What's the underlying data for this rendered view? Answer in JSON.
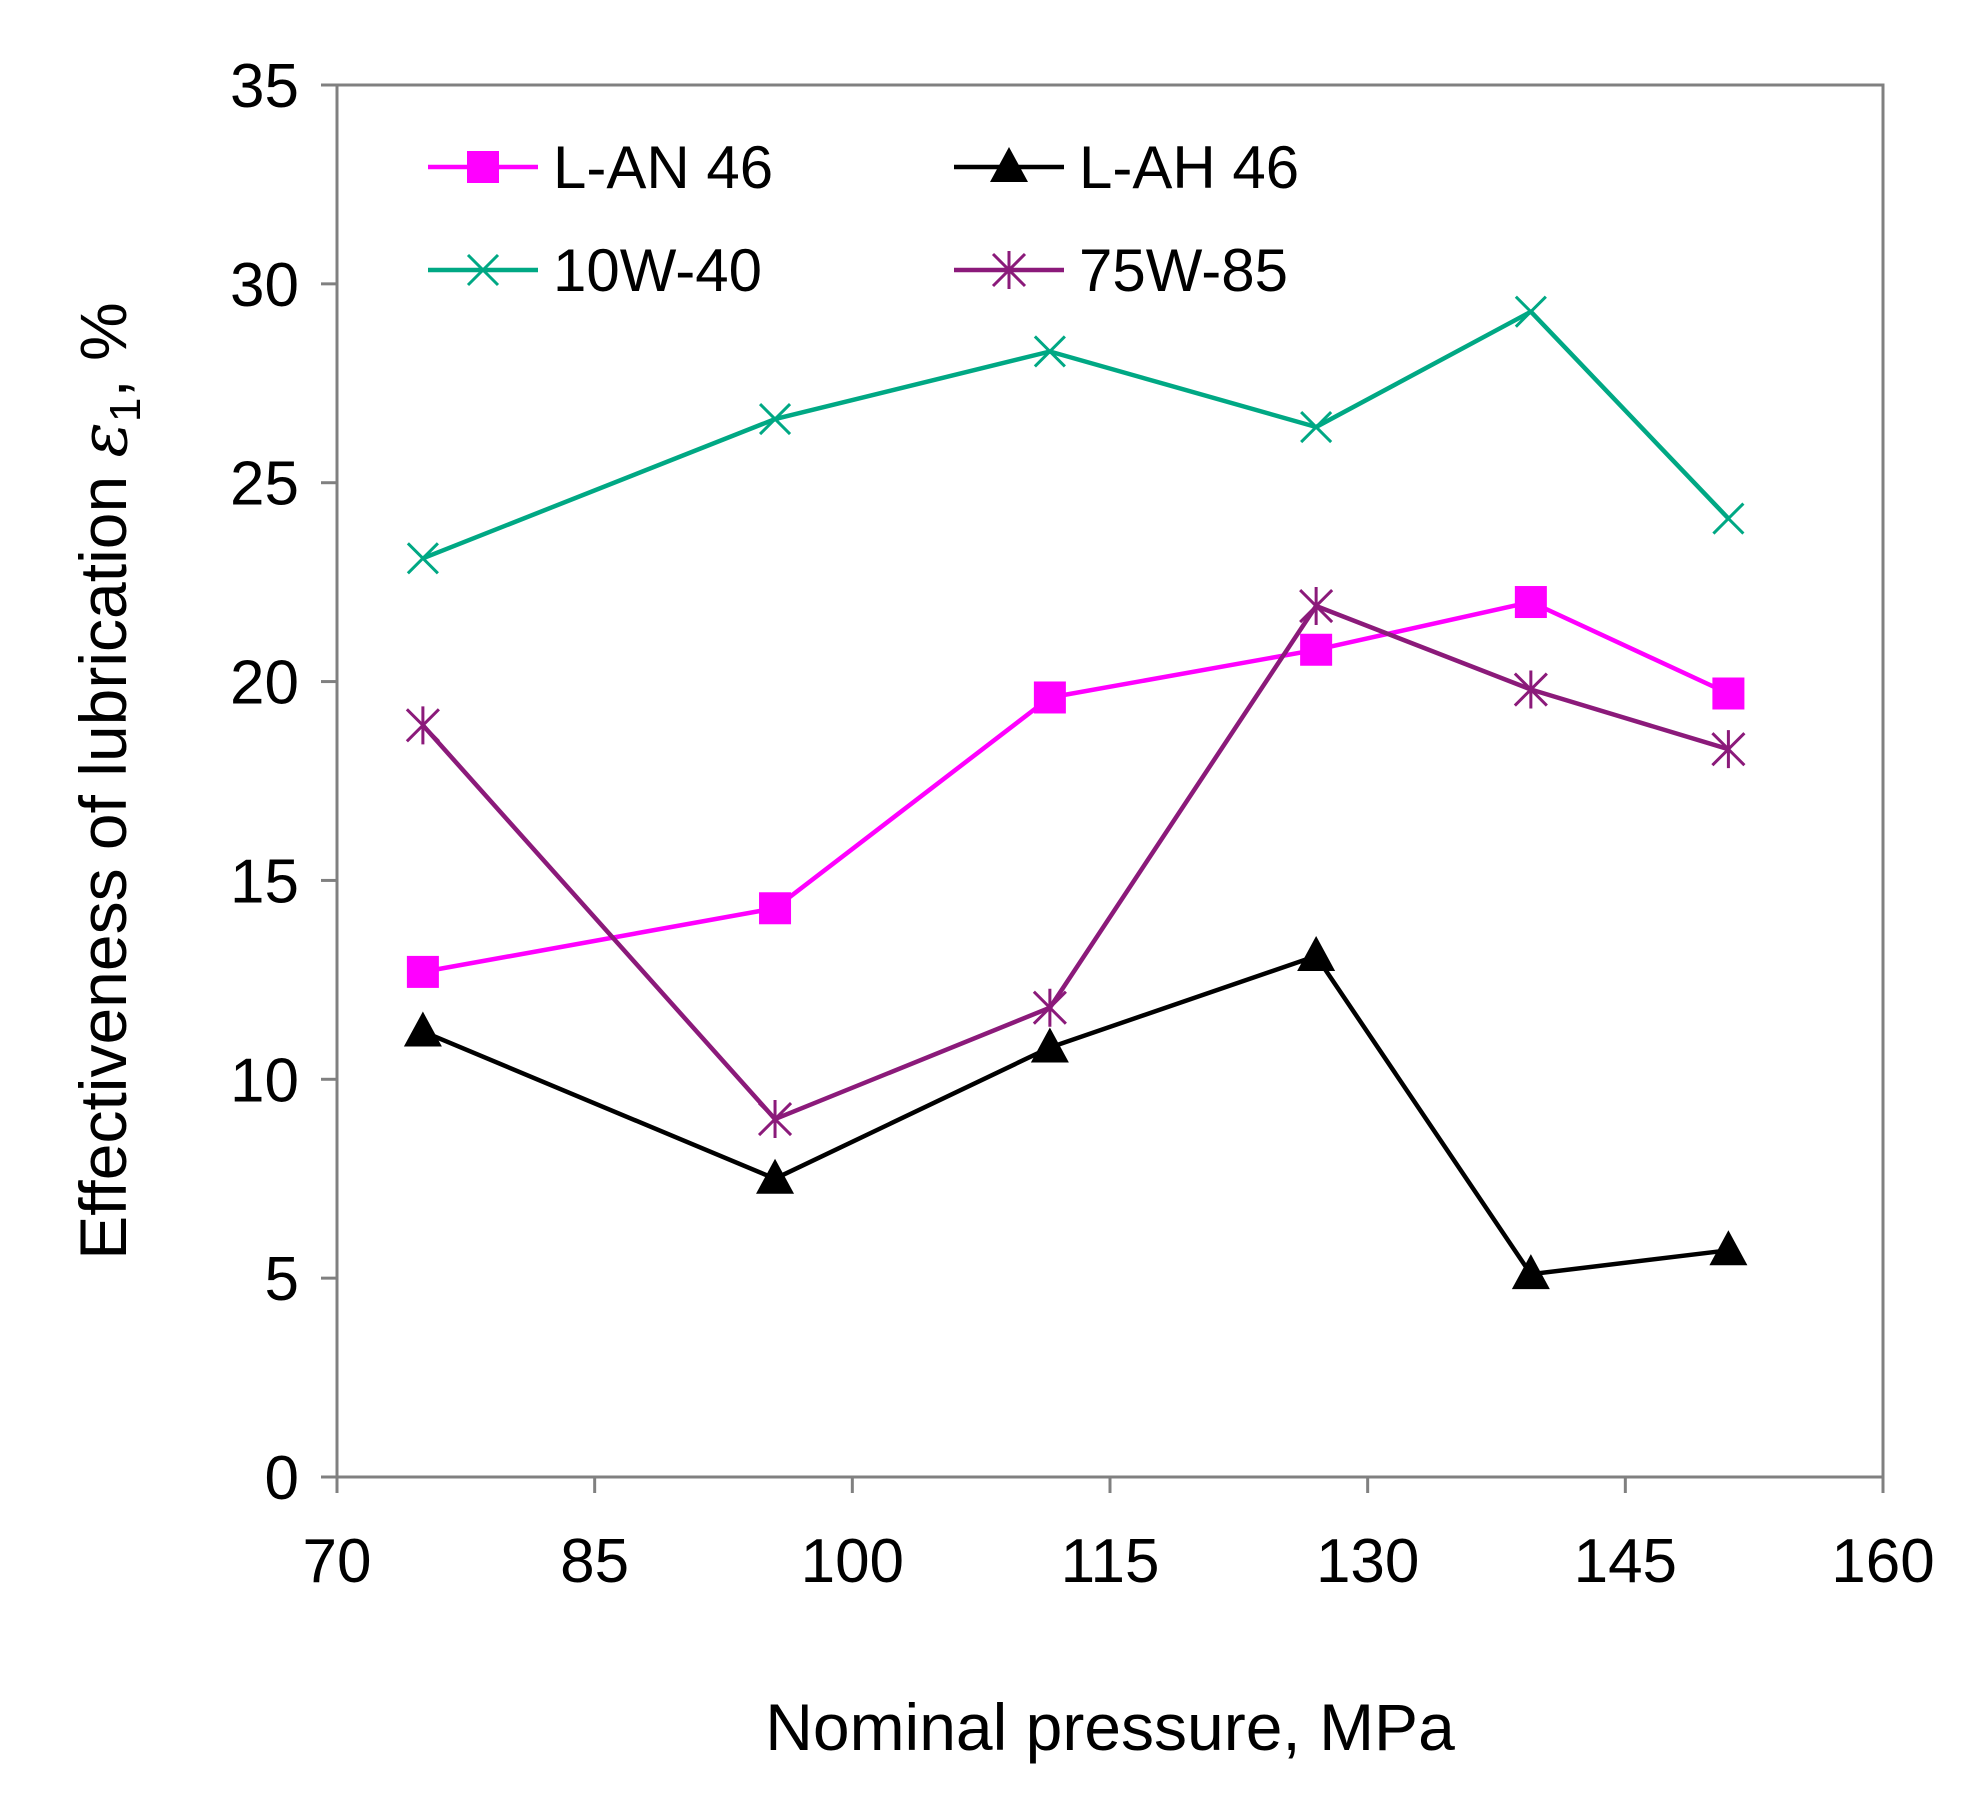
{
  "chart_data": {
    "type": "line",
    "title": "",
    "xlabel": "Nominal pressure, MPa",
    "ylabel": "Effectiveness of lubrication ε1, %",
    "ylabel_main": "Effectiveness of lubrication ",
    "ylabel_symbol": "ε",
    "ylabel_subscript": "1",
    "ylabel_suffix": ", %",
    "xlim": [
      70,
      160
    ],
    "ylim": [
      0,
      35
    ],
    "xticks": [
      70,
      85,
      100,
      115,
      130,
      145,
      160
    ],
    "yticks": [
      0,
      5,
      10,
      15,
      20,
      25,
      30,
      35
    ],
    "grid": false,
    "legend_position": "top-left",
    "x": [
      75,
      95.5,
      111.5,
      127,
      139.5,
      151
    ],
    "series": [
      {
        "name": "L-AN 46",
        "color": "#ff00ff",
        "marker": "square",
        "values": [
          12.7,
          14.3,
          19.6,
          20.8,
          22.0,
          19.7
        ]
      },
      {
        "name": "L-AH 46",
        "color": "#000000",
        "marker": "triangle",
        "values": [
          11.2,
          7.5,
          10.8,
          13.1,
          5.1,
          5.7
        ]
      },
      {
        "name": "10W-40",
        "color": "#00a884",
        "marker": "x",
        "values": [
          23.1,
          26.6,
          28.3,
          26.4,
          29.3,
          24.1
        ]
      },
      {
        "name": "75W-85",
        "color": "#8b1a7a",
        "marker": "star",
        "values": [
          18.9,
          9.0,
          11.8,
          21.9,
          19.8,
          18.3
        ]
      }
    ]
  }
}
